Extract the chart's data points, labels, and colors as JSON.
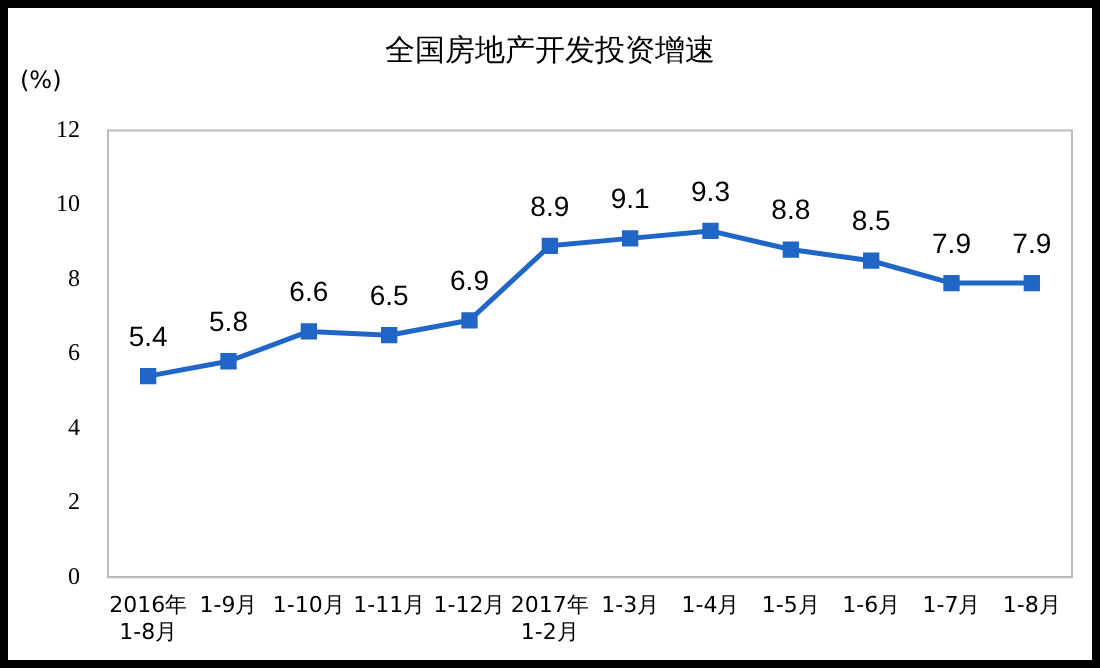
{
  "chart_data": {
    "type": "line",
    "title": "全国房地产开发投资增速",
    "ylabel": "(%)",
    "categories": [
      "2016年\n1-8月",
      "1-9月",
      "1-10月",
      "1-11月",
      "1-12月",
      "2017年\n1-2月",
      "1-3月",
      "1-4月",
      "1-5月",
      "1-6月",
      "1-7月",
      "1-8月"
    ],
    "series": [
      {
        "color": "#1f66c6",
        "values": [
          5.4,
          5.8,
          6.6,
          6.5,
          6.9,
          8.9,
          9.1,
          9.3,
          8.8,
          8.5,
          7.9,
          7.9
        ]
      }
    ],
    "ylim": [
      0,
      12
    ],
    "yticks": [
      0,
      2,
      4,
      6,
      8,
      10,
      12
    ],
    "grid": false,
    "legend": false,
    "marker": "square",
    "line_style": "solid",
    "data_labels": true
  }
}
